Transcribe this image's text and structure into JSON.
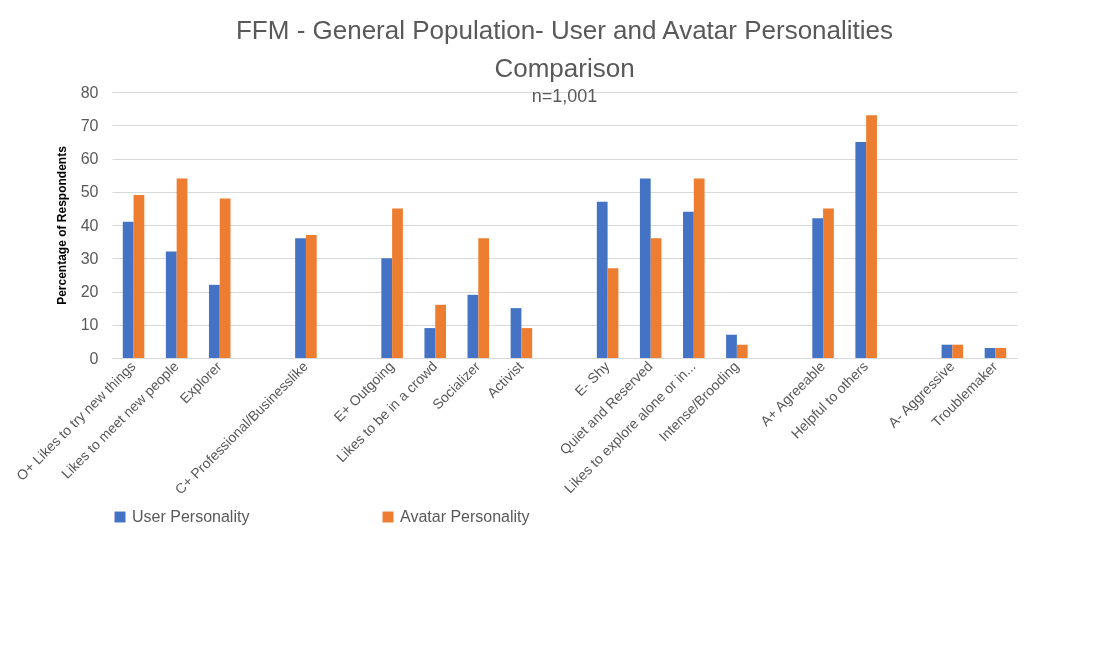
{
  "chart_data": {
    "type": "bar",
    "title": [
      "FFM - General Population- User and Avatar Personalities",
      "Comparison"
    ],
    "subtitle": "n=1,001",
    "ylabel": "Percentage of Respondents",
    "categories": [
      "O+   Likes to try new things",
      "Likes to meet new people",
      "Explorer",
      null,
      "C+   Professional/Businesslike",
      null,
      "E+   Outgoing",
      "Likes to be in a crowd",
      "Socializer",
      "Activist",
      null,
      "E-     Shy",
      "Quiet and Reserved",
      "Likes to explore alone or in...",
      "Intense/Brooding",
      null,
      "A+   Agreeable",
      "Helpful to others",
      null,
      "A-     Aggressive",
      "Troublemaker"
    ],
    "series": [
      {
        "name": "User Personality",
        "color": "#4472c4",
        "values": [
          41,
          32,
          22,
          null,
          36,
          null,
          30,
          9,
          19,
          15,
          null,
          47,
          54,
          44,
          7,
          null,
          42,
          65,
          null,
          4,
          3
        ]
      },
      {
        "name": "Avatar Personality",
        "color": "#ed7d31",
        "values": [
          49,
          54,
          48,
          null,
          37,
          null,
          45,
          16,
          36,
          9,
          null,
          27,
          36,
          54,
          4,
          null,
          45,
          73,
          null,
          4,
          3
        ]
      }
    ],
    "ylim": [
      0,
      80
    ],
    "yticks": [
      0,
      10,
      20,
      30,
      40,
      50,
      60,
      70,
      80
    ],
    "grid": "y",
    "legend": "bottom"
  }
}
